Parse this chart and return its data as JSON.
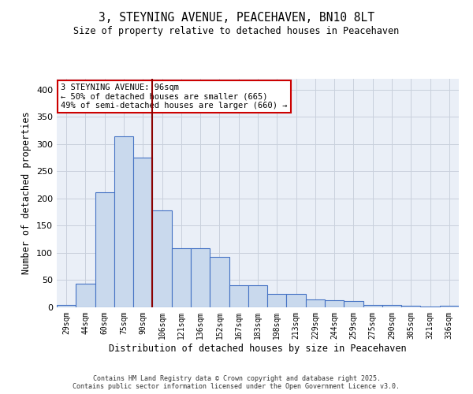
{
  "title_line1": "3, STEYNING AVENUE, PEACEHAVEN, BN10 8LT",
  "title_line2": "Size of property relative to detached houses in Peacehaven",
  "xlabel": "Distribution of detached houses by size in Peacehaven",
  "ylabel": "Number of detached properties",
  "categories": [
    "29sqm",
    "44sqm",
    "60sqm",
    "75sqm",
    "90sqm",
    "106sqm",
    "121sqm",
    "136sqm",
    "152sqm",
    "167sqm",
    "183sqm",
    "198sqm",
    "213sqm",
    "229sqm",
    "244sqm",
    "259sqm",
    "275sqm",
    "290sqm",
    "305sqm",
    "321sqm",
    "336sqm"
  ],
  "values": [
    4,
    43,
    211,
    315,
    275,
    178,
    108,
    108,
    92,
    40,
    40,
    25,
    25,
    15,
    13,
    11,
    5,
    5,
    3,
    1,
    3
  ],
  "bar_color": "#c9d9ed",
  "bar_edge_color": "#4472c4",
  "vline_color": "#8b0000",
  "vline_x": 4.5,
  "annotation_text": "3 STEYNING AVENUE: 96sqm\n← 50% of detached houses are smaller (665)\n49% of semi-detached houses are larger (660) →",
  "annotation_box_color": "#ffffff",
  "annotation_box_edge_color": "#cc0000",
  "ylim": [
    0,
    420
  ],
  "yticks": [
    0,
    50,
    100,
    150,
    200,
    250,
    300,
    350,
    400
  ],
  "grid_color": "#c8d0dc",
  "background_color": "#eaeff7",
  "footer_line1": "Contains HM Land Registry data © Crown copyright and database right 2025.",
  "footer_line2": "Contains public sector information licensed under the Open Government Licence v3.0."
}
